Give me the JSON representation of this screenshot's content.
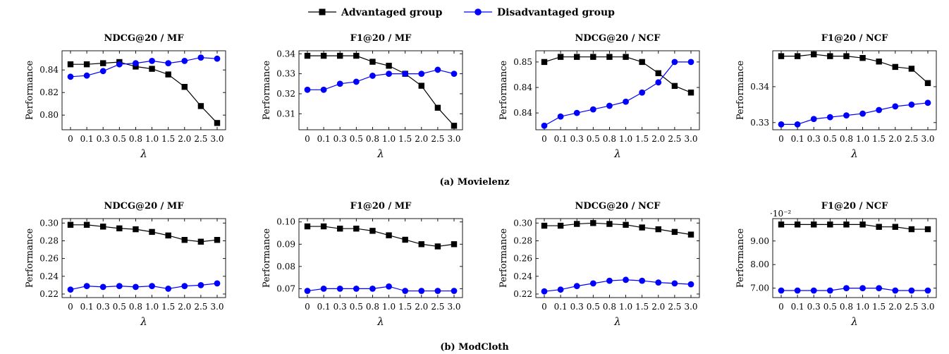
{
  "legend": [
    {
      "label": "Advantaged group",
      "color": "#000000",
      "marker": "square"
    },
    {
      "label": "Disadvantaged group",
      "color": "#0000ff",
      "marker": "circle"
    }
  ],
  "captions": [
    "(a) Movielenz",
    "(b) ModCloth"
  ],
  "chart_data": [
    {
      "type": "line",
      "title": "NDCG@20 / MF",
      "xlabel": "λ",
      "ylabel": "Performance",
      "categories": [
        "0",
        "0.1",
        "0.3",
        "0.5",
        "0.8",
        "1.0",
        "1.5",
        "2.0",
        "2.5",
        "3.0"
      ],
      "ylim": [
        0.787,
        0.857
      ],
      "yticks": [
        0.8,
        0.82,
        0.84
      ],
      "ytick_labels": [
        "0.80",
        "0.82",
        "0.84"
      ],
      "series": [
        {
          "name": "Advantaged group",
          "values": [
            0.845,
            0.845,
            0.846,
            0.847,
            0.843,
            0.841,
            0.836,
            0.825,
            0.808,
            0.793
          ]
        },
        {
          "name": "Disadvantaged group",
          "values": [
            0.834,
            0.835,
            0.839,
            0.845,
            0.846,
            0.848,
            0.846,
            0.848,
            0.851,
            0.85
          ]
        }
      ]
    },
    {
      "type": "line",
      "title": "F1@20 / MF",
      "xlabel": "λ",
      "ylabel": "Performance",
      "categories": [
        "0",
        "0.1",
        "0.3",
        "0.5",
        "0.8",
        "1.0",
        "1.5",
        "2.0",
        "2.5",
        "3.0"
      ],
      "ylim": [
        0.302,
        0.3415
      ],
      "yticks": [
        0.31,
        0.32,
        0.33,
        0.34
      ],
      "ytick_labels": [
        "0.31",
        "0.32",
        "0.33",
        "0.34"
      ],
      "series": [
        {
          "name": "Advantaged group",
          "values": [
            0.339,
            0.339,
            0.339,
            0.339,
            0.336,
            0.334,
            0.33,
            0.324,
            0.313,
            0.304
          ]
        },
        {
          "name": "Disadvantaged group",
          "values": [
            0.322,
            0.322,
            0.325,
            0.326,
            0.329,
            0.33,
            0.33,
            0.33,
            0.332,
            0.33
          ]
        }
      ]
    },
    {
      "type": "line",
      "title": "NDCG@20 / NCF",
      "xlabel": "λ",
      "ylabel": "Performance",
      "categories": [
        "0",
        "0.1",
        "0.3",
        "0.5",
        "0.8",
        "1.0",
        "1.5",
        "2.0",
        "2.5",
        "3.0"
      ],
      "ylim": [
        0.8367,
        0.8522
      ],
      "yticks": [
        0.84,
        0.845,
        0.85
      ],
      "ytick_labels": [
        "0.84",
        "0.84",
        "0.85"
      ],
      "series": [
        {
          "name": "Advantaged group",
          "values": [
            0.85,
            0.851,
            0.851,
            0.851,
            0.851,
            0.851,
            0.85,
            0.8478,
            0.8453,
            0.844
          ]
        },
        {
          "name": "Disadvantaged group",
          "values": [
            0.8375,
            0.8393,
            0.84,
            0.8407,
            0.8414,
            0.8422,
            0.844,
            0.846,
            0.85,
            0.85
          ]
        }
      ]
    },
    {
      "type": "line",
      "title": "F1@20 / NCF",
      "xlabel": "λ",
      "ylabel": "Performance",
      "categories": [
        "0",
        "0.1",
        "0.3",
        "0.5",
        "0.8",
        "1.0",
        "1.5",
        "2.0",
        "2.5",
        "3.0"
      ],
      "ylim": [
        0.3255,
        0.3475
      ],
      "yticks": [
        0.3275,
        0.3375
      ],
      "ytick_labels": [
        "0.33",
        "0.34"
      ],
      "series": [
        {
          "name": "Advantaged group",
          "values": [
            0.346,
            0.346,
            0.3465,
            0.346,
            0.346,
            0.3455,
            0.3445,
            0.343,
            0.3425,
            0.3385
          ]
        },
        {
          "name": "Disadvantaged group",
          "values": [
            0.327,
            0.327,
            0.3285,
            0.329,
            0.3295,
            0.33,
            0.331,
            0.332,
            0.3325,
            0.333
          ]
        }
      ]
    },
    {
      "type": "line",
      "title": "NDCG@20 / MF",
      "xlabel": "λ",
      "ylabel": "Performance",
      "categories": [
        "0",
        "0.1",
        "0.3",
        "0.5",
        "0.8",
        "1.0",
        "1.5",
        "2.0",
        "2.5",
        "3.0"
      ],
      "ylim": [
        0.216,
        0.305
      ],
      "yticks": [
        0.22,
        0.24,
        0.26,
        0.28,
        0.3
      ],
      "ytick_labels": [
        "0.22",
        "0.24",
        "0.26",
        "0.28",
        "0.30"
      ],
      "series": [
        {
          "name": "Advantaged group",
          "values": [
            0.298,
            0.298,
            0.296,
            0.294,
            0.293,
            0.29,
            0.286,
            0.281,
            0.279,
            0.281
          ]
        },
        {
          "name": "Disadvantaged group",
          "values": [
            0.225,
            0.229,
            0.228,
            0.229,
            0.228,
            0.229,
            0.226,
            0.229,
            0.23,
            0.232
          ]
        }
      ]
    },
    {
      "type": "line",
      "title": "F1@20 / MF",
      "xlabel": "λ",
      "ylabel": "Performance",
      "categories": [
        "0",
        "0.1",
        "0.3",
        "0.5",
        "0.8",
        "1.0",
        "1.5",
        "2.0",
        "2.5",
        "3.0"
      ],
      "ylim": [
        0.066,
        0.1015
      ],
      "yticks": [
        0.07,
        0.08,
        0.09,
        0.1
      ],
      "ytick_labels": [
        "0.07",
        "0.08",
        "0.09",
        "0.10"
      ],
      "series": [
        {
          "name": "Advantaged group",
          "values": [
            0.098,
            0.098,
            0.097,
            0.097,
            0.096,
            0.094,
            0.092,
            0.09,
            0.089,
            0.09
          ]
        },
        {
          "name": "Disadvantaged group",
          "values": [
            0.069,
            0.07,
            0.07,
            0.07,
            0.07,
            0.071,
            0.069,
            0.069,
            0.069,
            0.069
          ]
        }
      ]
    },
    {
      "type": "line",
      "title": "NDCG@20 / NCF",
      "xlabel": "λ",
      "ylabel": "Performance",
      "categories": [
        "0",
        "0.1",
        "0.3",
        "0.5",
        "0.8",
        "1.0",
        "1.5",
        "2.0",
        "2.5",
        "3.0"
      ],
      "ylim": [
        0.216,
        0.305
      ],
      "yticks": [
        0.22,
        0.24,
        0.26,
        0.28,
        0.3
      ],
      "ytick_labels": [
        "0.22",
        "0.24",
        "0.26",
        "0.28",
        "0.30"
      ],
      "series": [
        {
          "name": "Advantaged group",
          "values": [
            0.297,
            0.297,
            0.299,
            0.3,
            0.299,
            0.298,
            0.295,
            0.293,
            0.29,
            0.287
          ]
        },
        {
          "name": "Disadvantaged group",
          "values": [
            0.223,
            0.225,
            0.229,
            0.232,
            0.235,
            0.236,
            0.235,
            0.233,
            0.232,
            0.231
          ]
        }
      ]
    },
    {
      "type": "line",
      "title": "F1@20 / NCF",
      "xlabel": "λ",
      "ylabel": "Performance",
      "categories": [
        "0",
        "0.1",
        "0.3",
        "0.5",
        "0.8",
        "1.0",
        "1.5",
        "2.0",
        "2.5",
        "3.0"
      ],
      "ylim": [
        6.6,
        9.95
      ],
      "yticks": [
        7.0,
        8.0,
        9.0
      ],
      "ytick_labels": [
        "7.00",
        "8.00",
        "9.00"
      ],
      "scale_note": "·10⁻²",
      "series": [
        {
          "name": "Advantaged group",
          "values": [
            9.7,
            9.7,
            9.7,
            9.7,
            9.7,
            9.7,
            9.6,
            9.6,
            9.5,
            9.5
          ]
        },
        {
          "name": "Disadvantaged group",
          "values": [
            6.9,
            6.9,
            6.9,
            6.9,
            7.0,
            7.0,
            7.0,
            6.9,
            6.9,
            6.9
          ]
        }
      ]
    }
  ]
}
